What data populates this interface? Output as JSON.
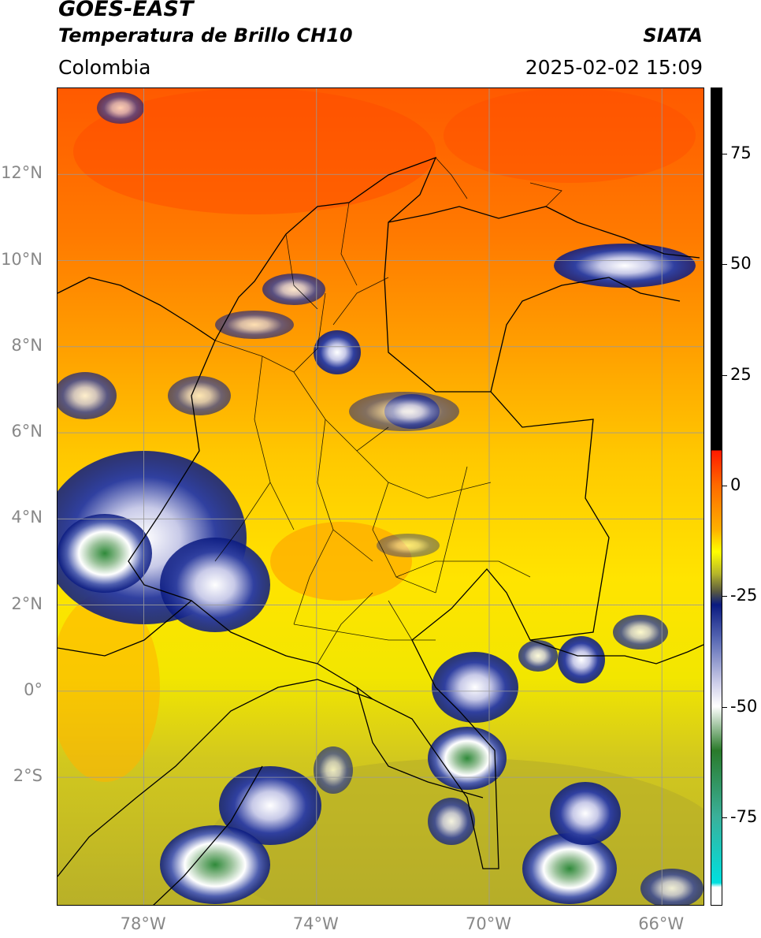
{
  "header": {
    "satellite": "GOES-EAST",
    "product": "Temperatura de Brillo CH10",
    "brand": "SIATA",
    "region": "Colombia",
    "timestamp": "2025-02-02 15:09"
  },
  "map": {
    "extent": {
      "lon_min": -80,
      "lon_max": -65,
      "lat_min": -5,
      "lat_max": 14
    },
    "lat_ticks": [
      {
        "value": 12,
        "label": "12°N"
      },
      {
        "value": 10,
        "label": "10°N"
      },
      {
        "value": 8,
        "label": "8°N"
      },
      {
        "value": 6,
        "label": "6°N"
      },
      {
        "value": 4,
        "label": "4°N"
      },
      {
        "value": 2,
        "label": "2°N"
      },
      {
        "value": 0,
        "label": "0°"
      },
      {
        "value": -2,
        "label": "2°S"
      }
    ],
    "lon_ticks": [
      {
        "value": -78,
        "label": "78°W"
      },
      {
        "value": -74,
        "label": "74°W"
      },
      {
        "value": -70,
        "label": "70°W"
      },
      {
        "value": -66,
        "label": "66°W"
      }
    ],
    "grid_color": "#9a9a9a"
  },
  "colorbar": {
    "range": [
      -95,
      90
    ],
    "stops": [
      {
        "value": 90,
        "color": "#000000"
      },
      {
        "value": 8,
        "color": "#000000"
      },
      {
        "value": 7.9,
        "color": "#ff1a00"
      },
      {
        "value": 0,
        "color": "#ff6a00"
      },
      {
        "value": -10,
        "color": "#ffb000"
      },
      {
        "value": -15,
        "color": "#ffff00"
      },
      {
        "value": -20,
        "color": "#b5b52a"
      },
      {
        "value": -24,
        "color": "#5a5a40"
      },
      {
        "value": -27,
        "color": "#0a1a80"
      },
      {
        "value": -35,
        "color": "#5a6ab5"
      },
      {
        "value": -45,
        "color": "#d0d0ea"
      },
      {
        "value": -50,
        "color": "#ffffff"
      },
      {
        "value": -60,
        "color": "#2a7a2a"
      },
      {
        "value": -75,
        "color": "#3ab09a"
      },
      {
        "value": -90,
        "color": "#00e0e0"
      },
      {
        "value": -91,
        "color": "#ffffff"
      },
      {
        "value": -95,
        "color": "#ffffff"
      }
    ],
    "ticks": [
      {
        "value": 75,
        "label": "75"
      },
      {
        "value": 50,
        "label": "50"
      },
      {
        "value": 25,
        "label": "25"
      },
      {
        "value": 0,
        "label": "0"
      },
      {
        "value": -25,
        "label": "-25"
      },
      {
        "value": -50,
        "label": "-50"
      },
      {
        "value": -75,
        "label": "-75"
      }
    ]
  },
  "palette": {
    "hot": "#ff5a00",
    "warm": "#ff9a00",
    "mild": "#ffd000",
    "yellow": "#ffee00",
    "olive": "#c8c020",
    "navy": "#0a1a80",
    "lavender": "#b8bce0",
    "white": "#ffffff",
    "green": "#2f8a3a"
  }
}
